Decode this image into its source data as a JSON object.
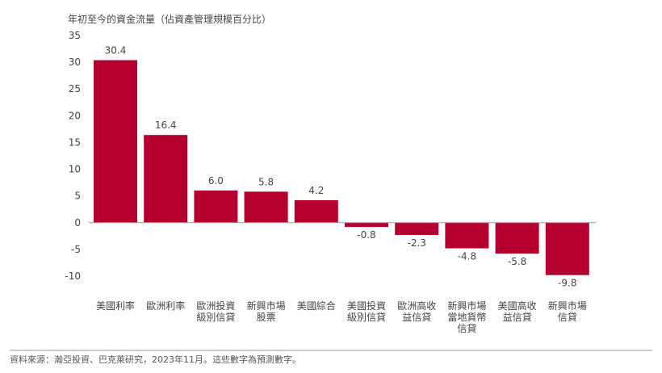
{
  "chart_data": {
    "type": "bar",
    "title": "",
    "ylabel": "年初至今的資金流量（佔資產管理規模百分比）",
    "xlabel": "",
    "ylim": [
      -10,
      35
    ],
    "yticks": [
      35,
      30,
      25,
      20,
      15,
      10,
      5,
      0,
      -5,
      -10
    ],
    "grid": false,
    "legend": "none",
    "categories": [
      [
        "美國利率"
      ],
      [
        "歐洲利率"
      ],
      [
        "歐洲投資",
        "級別信貸"
      ],
      [
        "新興市場",
        "股票"
      ],
      [
        "美國綜合"
      ],
      [
        "美國投資",
        "級別信貸"
      ],
      [
        "歐洲高收",
        "益信貸"
      ],
      [
        "新興市場",
        "當地貨幣",
        "信貸"
      ],
      [
        "美國高收",
        "益信貸"
      ],
      [
        "新興市場",
        "信貸"
      ]
    ],
    "values": [
      30.4,
      16.4,
      6.0,
      5.8,
      4.2,
      -0.8,
      -2.3,
      -4.8,
      -5.8,
      -9.8
    ],
    "data_labels": [
      "30.4",
      "16.4",
      "6.0",
      "5.8",
      "4.2",
      "-0.8",
      "-2.3",
      "-4.8",
      "-5.8",
      "-9.8"
    ],
    "bar_color": "#b5002f",
    "axis_color": "#999999"
  },
  "footer": {
    "source": "資料來源：瀚亞投資、巴克萊研究，2023年11月。這些數字為預測數字。"
  }
}
